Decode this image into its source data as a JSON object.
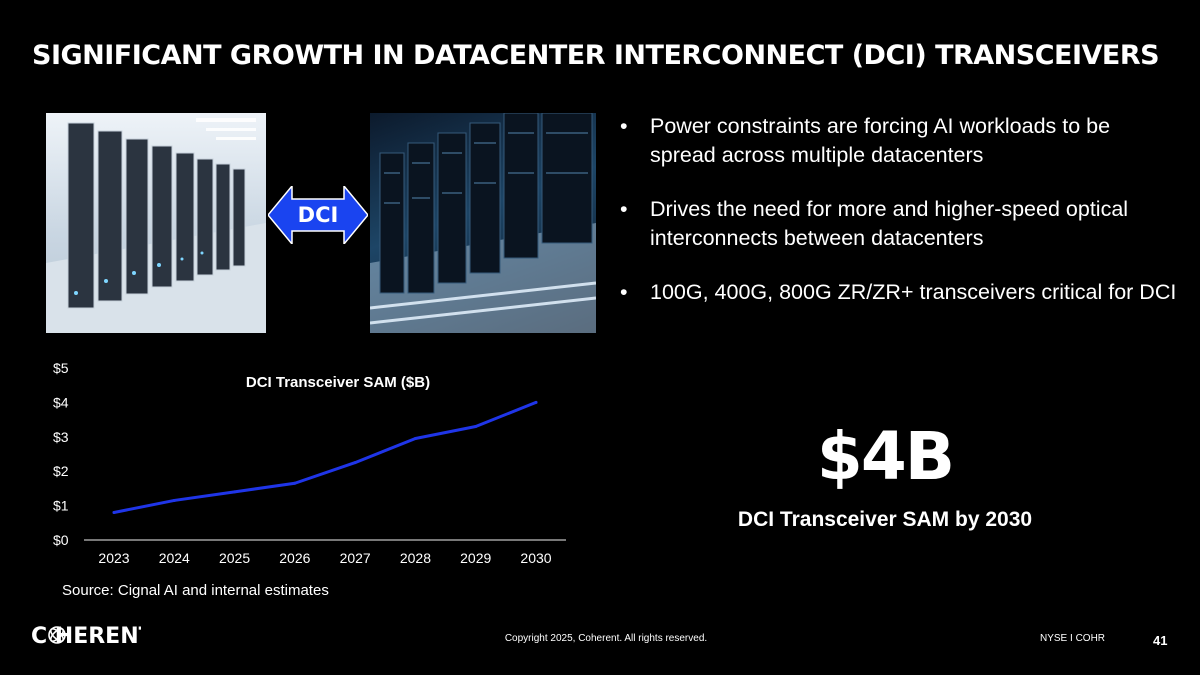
{
  "slide": {
    "title": "SIGNIFICANT GROWTH IN DATACENTER INTERCONNECT (DCI)  TRANSCEIVERS",
    "arrow_label": "DCI",
    "bullets": [
      "Power constraints are forcing AI workloads to be spread across multiple datacenters",
      "Drives the need for more and higher-speed optical interconnects between datacenters",
      "100G, 400G, 800G ZR/ZR+ transceivers critical for DCI"
    ],
    "bullet_glyph": "•",
    "highlight_value": "$4B",
    "highlight_caption": "DCI Transceiver SAM by 2030",
    "source": "Source: Cignal AI and internal estimates",
    "logo_text": "C HERENT",
    "copyright": "Copyright 2025, Coherent. All rights reserved.",
    "ticker": "NYSE I COHR",
    "page_number": "41"
  },
  "colors": {
    "background": "#000000",
    "line": "#1f35e8",
    "arrow": "#1a44f0",
    "text": "#ffffff"
  },
  "chart_data": {
    "type": "line",
    "title": "DCI Transceiver SAM ($B)",
    "x": [
      "2023",
      "2024",
      "2025",
      "2026",
      "2027",
      "2028",
      "2029",
      "2030"
    ],
    "series": [
      {
        "values": [
          0.8,
          1.15,
          1.4,
          1.65,
          2.25,
          2.95,
          3.3,
          4.0
        ]
      }
    ],
    "ylim": [
      0,
      5
    ],
    "yticks": [
      0,
      1,
      2,
      3,
      4,
      5
    ],
    "ytick_labels": [
      "$0",
      "$1",
      "$2",
      "$3",
      "$4",
      "$5"
    ],
    "grid": false,
    "legend": "none"
  }
}
